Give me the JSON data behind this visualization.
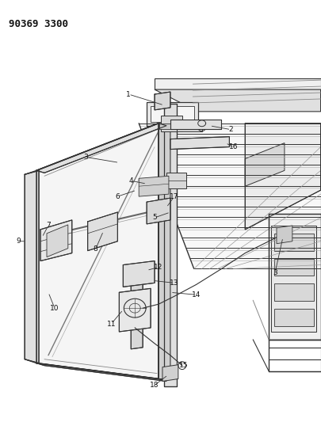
{
  "title": "90369 3300",
  "bg_color": "#ffffff",
  "line_color": "#333333",
  "fig_width": 4.06,
  "fig_height": 5.33,
  "dpi": 100
}
